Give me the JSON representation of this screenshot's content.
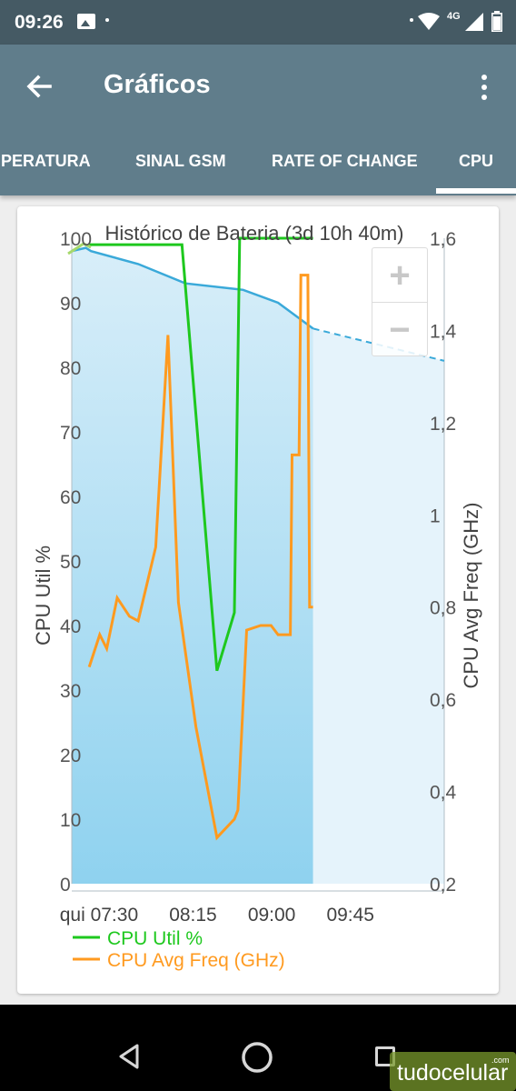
{
  "status_bar": {
    "time": "09:26",
    "network": "4G"
  },
  "toolbar": {
    "title": "Gráficos"
  },
  "tabs": [
    {
      "label": "IPERATURA",
      "selected": false
    },
    {
      "label": "SINAL GSM",
      "selected": false
    },
    {
      "label": "RATE OF CHANGE",
      "selected": false
    },
    {
      "label": "CPU",
      "selected": true
    }
  ],
  "zoom": {
    "in_label": "+",
    "out_label": "−"
  },
  "watermark": {
    "text": "tudocelular",
    "suffix": ".com"
  },
  "colors": {
    "status_bar": "#455a64",
    "toolbar": "#607d8b",
    "cpu_util": "#1ec81e",
    "cpu_freq": "#ff9a1f",
    "battery_line": "#3aa9d9",
    "battery_fill": "#cfeaf7"
  },
  "chart_data": {
    "type": "line",
    "title": "Histórico de Bateria (3d 10h 40m)",
    "ylabel": "CPU Util %",
    "y2label": "CPU Avg Freq (GHz)",
    "ylim": [
      0,
      100
    ],
    "y2lim": [
      0.2,
      1.6
    ],
    "y_ticks": [
      "0",
      "10",
      "20",
      "30",
      "40",
      "50",
      "60",
      "70",
      "80",
      "90",
      "100"
    ],
    "y2_ticks": [
      "0,2",
      "0,4",
      "0,6",
      "0,8",
      "1",
      "1,2",
      "1,4",
      "1,6"
    ],
    "x_ticks": [
      {
        "label": "qui 07:30",
        "t": 450
      },
      {
        "label": "08:15",
        "t": 495
      },
      {
        "label": "09:00",
        "t": 540
      },
      {
        "label": "09:45",
        "t": 585
      }
    ],
    "xlim": [
      412,
      625
    ],
    "grid": false,
    "legend_position": "bottom-left",
    "series": [
      {
        "name": "CPU Util %",
        "axis": "left",
        "points": [
          [
            422,
            99
          ],
          [
            475,
            99
          ],
          [
            495,
            33
          ],
          [
            505,
            42
          ],
          [
            508,
            100
          ],
          [
            550,
            100
          ]
        ]
      },
      {
        "name": "CPU Avg Freq (GHz)",
        "axis": "right",
        "points": [
          [
            422,
            0.67
          ],
          [
            428,
            0.74
          ],
          [
            432,
            0.71
          ],
          [
            438,
            0.82
          ],
          [
            445,
            0.78
          ],
          [
            450,
            0.77
          ],
          [
            460,
            0.93
          ],
          [
            467,
            1.39
          ],
          [
            473,
            0.81
          ],
          [
            483,
            0.54
          ],
          [
            495,
            0.3
          ],
          [
            505,
            0.34
          ],
          [
            507,
            0.36
          ],
          [
            512,
            0.75
          ],
          [
            520,
            0.76
          ],
          [
            526,
            0.76
          ],
          [
            530,
            0.74
          ],
          [
            537,
            0.74
          ],
          [
            538,
            1.13
          ],
          [
            542,
            1.13
          ],
          [
            543,
            1.52
          ],
          [
            547,
            1.52
          ],
          [
            548,
            0.8
          ],
          [
            550,
            0.8
          ]
        ]
      },
      {
        "name": "battery",
        "axis": "left",
        "points": [
          [
            412,
            98
          ],
          [
            420,
            98.5
          ],
          [
            423,
            98
          ],
          [
            450,
            96
          ],
          [
            477,
            93
          ],
          [
            510,
            92
          ],
          [
            530,
            90
          ],
          [
            550,
            86
          ]
        ],
        "projection": [
          [
            550,
            86
          ],
          [
            625,
            81
          ]
        ]
      }
    ]
  }
}
